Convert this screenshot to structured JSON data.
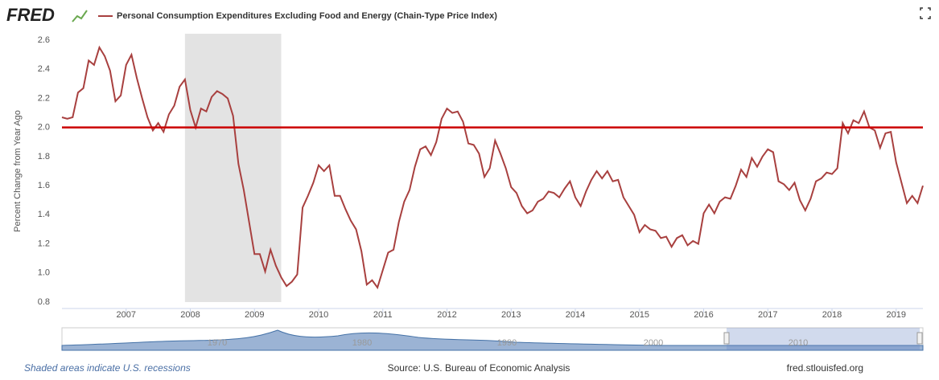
{
  "chart_data": {
    "type": "line",
    "logo": "FRED",
    "ylabel": "Percent Change from Year Ago",
    "categories": [
      null,
      null,
      null,
      null,
      null,
      null,
      null,
      null,
      null,
      null,
      null,
      null,
      "2007",
      null,
      null,
      null,
      null,
      null,
      null,
      null,
      null,
      null,
      null,
      null,
      "2008",
      null,
      null,
      null,
      null,
      null,
      null,
      null,
      null,
      null,
      null,
      null,
      "2009",
      null,
      null,
      null,
      null,
      null,
      null,
      null,
      null,
      null,
      null,
      null,
      "2010",
      null,
      null,
      null,
      null,
      null,
      null,
      null,
      null,
      null,
      null,
      null,
      "2011",
      null,
      null,
      null,
      null,
      null,
      null,
      null,
      null,
      null,
      null,
      null,
      "2012",
      null,
      null,
      null,
      null,
      null,
      null,
      null,
      null,
      null,
      null,
      null,
      "2013",
      null,
      null,
      null,
      null,
      null,
      null,
      null,
      null,
      null,
      null,
      null,
      "2014",
      null,
      null,
      null,
      null,
      null,
      null,
      null,
      null,
      null,
      null,
      null,
      "2015",
      null,
      null,
      null,
      null,
      null,
      null,
      null,
      null,
      null,
      null,
      null,
      "2016",
      null,
      null,
      null,
      null,
      null,
      null,
      null,
      null,
      null,
      null,
      null,
      "2017",
      null,
      null,
      null,
      null,
      null,
      null,
      null,
      null,
      null,
      null,
      null,
      "2018",
      null,
      null,
      null,
      null,
      null,
      null,
      null,
      null,
      null,
      null,
      null,
      "2019",
      null,
      null,
      null,
      null,
      null
    ],
    "series": [
      {
        "name": "Personal Consumption Expenditures Excluding Food and Energy (Chain-Type Price Index)",
        "color": "#a8403f",
        "values": [
          2.07,
          2.06,
          2.07,
          2.24,
          2.27,
          2.46,
          2.43,
          2.55,
          2.49,
          2.39,
          2.18,
          2.22,
          2.43,
          2.5,
          2.34,
          2.2,
          2.07,
          1.98,
          2.03,
          1.97,
          2.09,
          2.15,
          2.28,
          2.33,
          2.12,
          2.0,
          2.13,
          2.11,
          2.21,
          2.25,
          2.23,
          2.2,
          2.08,
          1.75,
          1.57,
          1.35,
          1.13,
          1.13,
          1.01,
          1.16,
          1.05,
          0.97,
          0.91,
          0.94,
          0.99,
          1.45,
          1.53,
          1.62,
          1.74,
          1.7,
          1.74,
          1.53,
          1.53,
          1.44,
          1.36,
          1.3,
          1.15,
          0.92,
          0.95,
          0.9,
          1.02,
          1.14,
          1.16,
          1.35,
          1.49,
          1.57,
          1.73,
          1.85,
          1.87,
          1.81,
          1.9,
          2.06,
          2.13,
          2.1,
          2.11,
          2.04,
          1.89,
          1.88,
          1.82,
          1.66,
          1.72,
          1.91,
          1.82,
          1.72,
          1.59,
          1.55,
          1.46,
          1.41,
          1.43,
          1.49,
          1.51,
          1.56,
          1.55,
          1.52,
          1.58,
          1.63,
          1.52,
          1.46,
          1.56,
          1.64,
          1.7,
          1.65,
          1.7,
          1.63,
          1.64,
          1.52,
          1.46,
          1.4,
          1.28,
          1.33,
          1.3,
          1.29,
          1.24,
          1.25,
          1.18,
          1.24,
          1.26,
          1.19,
          1.22,
          1.2,
          1.41,
          1.47,
          1.41,
          1.49,
          1.52,
          1.51,
          1.6,
          1.71,
          1.66,
          1.79,
          1.73,
          1.8,
          1.85,
          1.83,
          1.63,
          1.61,
          1.57,
          1.62,
          1.5,
          1.43,
          1.51,
          1.63,
          1.65,
          1.69,
          1.68,
          1.72,
          2.03,
          1.96,
          2.05,
          2.03,
          2.11,
          2.0,
          1.98,
          1.86,
          1.96,
          1.97,
          1.76,
          1.62,
          1.48,
          1.53,
          1.48,
          1.6
        ]
      }
    ],
    "ylim": [
      0.8,
      2.6
    ],
    "yticks": [
      0.8,
      {
        "value": 1,
        "label": "1.0"
      },
      1.2,
      1.4,
      1.6,
      1.8,
      {
        "value": 2,
        "label": "2.0"
      },
      2.2,
      2.4,
      2.6
    ],
    "grid": false,
    "reference_line": {
      "value": 2,
      "color": "#cc0000"
    },
    "shaded_ranges": [
      {
        "from": 23,
        "to": 41,
        "color": "#e3e3e3"
      }
    ],
    "navigator_labels": [
      "1970",
      "1980",
      "1990",
      "2000",
      "2010"
    ],
    "footer_note": "Shaded areas indicate U.S. recessions",
    "source": "Source: U.S. Bureau of Economic Analysis",
    "site": "fred.stlouisfed.org"
  }
}
